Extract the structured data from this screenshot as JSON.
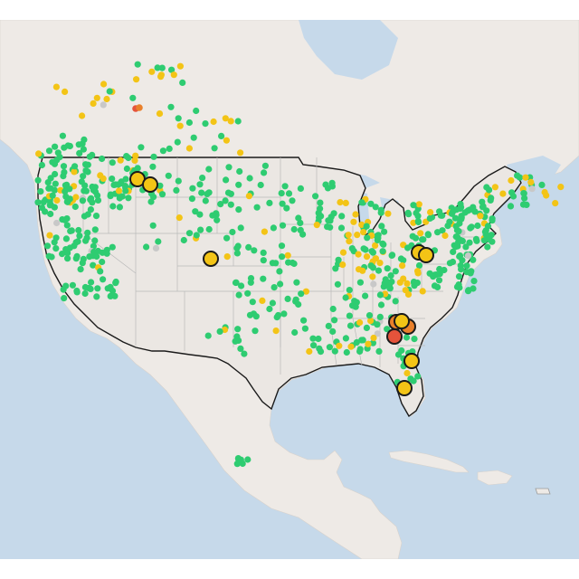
{
  "map": {
    "colors": {
      "ocean": "#c6d9ea",
      "land": "#eeeae6",
      "us_fill": "#ebe7e3",
      "us_border": "#1a1a1a",
      "state_lines": "#b9b9b9",
      "lakes": "#c6d9ea"
    },
    "legend_levels": {
      "good": "#2ecc71",
      "moderate": "#f3c416",
      "unhealthy_sensitive": "#e9802b",
      "unhealthy": "#e5533b",
      "no_data": "#c8c8c8"
    },
    "highlight_stations": [
      {
        "level": "moderate"
      },
      {
        "level": "moderate"
      },
      {
        "level": "moderate"
      },
      {
        "level": "moderate"
      },
      {
        "level": "moderate"
      },
      {
        "level": "unhealthy_sensitive"
      },
      {
        "level": "unhealthy_sensitive"
      },
      {
        "level": "moderate"
      },
      {
        "level": "unhealthy"
      },
      {
        "level": "moderate"
      },
      {
        "level": "moderate"
      }
    ]
  }
}
